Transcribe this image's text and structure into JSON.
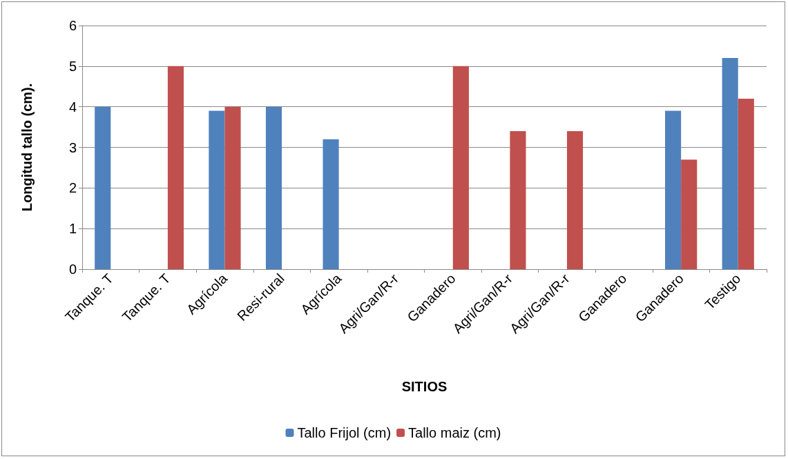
{
  "chart_data": {
    "type": "bar",
    "xlabel": "SITIOS",
    "ylabel": "Longitud tallo (cm).",
    "categories": [
      "Tanque. T",
      "Tanque. T",
      "Agrícola",
      "Resi-rural",
      "Agrícola",
      "Agri/Gan/R-r",
      "Ganadero",
      "Agri/Gan/R-r",
      "Agri/Gan/R-r",
      "Ganadero",
      "Ganadero",
      "Testigo"
    ],
    "series": [
      {
        "name": "Tallo Frijol (cm)",
        "color": "#4f81bd",
        "values": [
          4,
          null,
          3.9,
          4,
          3.2,
          null,
          null,
          null,
          null,
          null,
          3.9,
          5.2
        ]
      },
      {
        "name": "Tallo maiz (cm)",
        "color": "#c0504d",
        "values": [
          null,
          5,
          4,
          null,
          null,
          null,
          5,
          3.4,
          3.4,
          null,
          2.7,
          4.2
        ]
      }
    ],
    "ylim": [
      0,
      6
    ],
    "yticks": [
      0,
      1,
      2,
      3,
      4,
      5,
      6
    ],
    "grid": "y",
    "legend": "bottom"
  }
}
